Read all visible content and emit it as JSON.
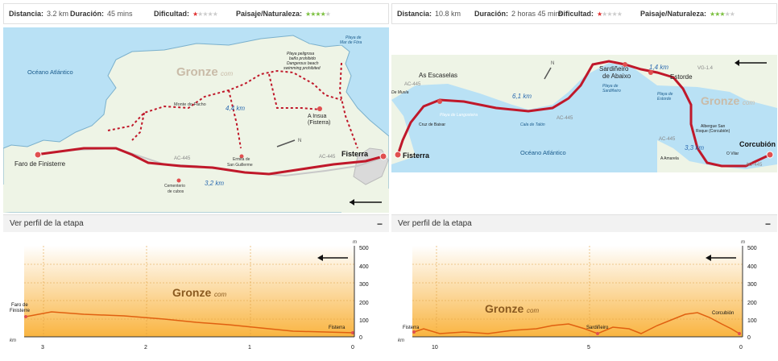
{
  "left": {
    "stats": {
      "distance_label": "Distancia:",
      "distance_value": "3.2 km",
      "duration_label": "Duración:",
      "duration_value": "45 mins",
      "difficulty_label": "Dificultad:",
      "difficulty_stars": "★",
      "difficulty_empty": "★★★★",
      "landscape_label": "Paisaje/Naturaleza:",
      "landscape_stars": "★★★★",
      "landscape_empty": "★"
    },
    "map": {
      "ocean": "Océano Atlántico",
      "brand": "Gronze",
      "brand_suffix": "com",
      "places": {
        "faro": "Faro de Finisterre",
        "monte": "Monte do Facho",
        "ermita1": "Ermita de",
        "ermita2": "San Guillerme",
        "cementerio1": "Cementerio",
        "cementerio2": "de cubos",
        "insua1": "A Insua",
        "insua2": "(Fisterra)",
        "fisterra": "Fisterra",
        "playa1": "Playa de",
        "playa2": "Mar de Fóra",
        "warn1": "Playa peligrosa",
        "warn2": "baño prohibido",
        "warn3": "Dangerous beach",
        "warn4": "swimming prohibited"
      },
      "roads": {
        "ac445a": "AC-445",
        "ac445b": "AC-445"
      },
      "distances": {
        "d1": "3,2 km",
        "d2": "4,4 km"
      },
      "compass_n": "N"
    },
    "profile": {
      "header": "Ver perfil de la etapa",
      "toggle": "−",
      "brand": "Gronze",
      "brand_suffix": "com",
      "start_label1": "Faro de",
      "start_label2": "Finisterre",
      "end_label": "Fisterra",
      "y_unit": "m",
      "x_unit": "km",
      "y_ticks": [
        "500",
        "400",
        "300",
        "200",
        "100",
        "0"
      ],
      "x_ticks": [
        "3",
        "2",
        "1",
        "0"
      ]
    }
  },
  "right": {
    "stats": {
      "distance_label": "Distancia:",
      "distance_value": "10.8 km",
      "duration_label": "Duración:",
      "duration_value": "2 horas 45 mins",
      "difficulty_label": "Dificultad:",
      "difficulty_stars": "★",
      "difficulty_empty": "★★★★",
      "landscape_label": "Paisaje/Naturaleza:",
      "landscape_stars": "★★★",
      "landscape_empty": "★★"
    },
    "map": {
      "ocean": "Océano Atlántico",
      "brand": "Gronze",
      "brand_suffix": "com",
      "places": {
        "escaselas": "As Escaselas",
        "sardineiro1": "Sardiñeiro",
        "sardineiro2": "de Abaixo",
        "estorde": "Estorde",
        "fisterra": "Fisterra",
        "corcubion": "Corcubión",
        "moxia1": "De Muxía",
        "cruz": "Cruz de Baixar",
        "langosteira": "Playa de Langosteira",
        "talon": "Cala de Talón",
        "playasard1": "Playa de",
        "playasard2": "Sardiñeiro",
        "playaest1": "Playa de",
        "playaest2": "Estorde",
        "albergue1": "Albergue San",
        "albergue2": "Roque (Corcubión)",
        "vilar": "O Vilar",
        "amarela": "A Amarela"
      },
      "roads": {
        "ac445a": "AC-445",
        "ac445b": "AC-445",
        "ac445c": "AC-445",
        "ac445d": "AC-445",
        "vg": "VG-1.4"
      },
      "distances": {
        "d1": "6,1 km",
        "d2": "1,4 km",
        "d3": "3,3 km"
      },
      "compass_n": "N"
    },
    "profile": {
      "header": "Ver perfil de la etapa",
      "toggle": "−",
      "brand": "Gronze",
      "brand_suffix": "com",
      "start_label": "Fisterra",
      "mid_label": "Sardiñeiro",
      "end_label": "Corcubión",
      "y_unit": "m",
      "x_unit": "km",
      "y_ticks": [
        "500",
        "400",
        "300",
        "200",
        "100",
        "0"
      ],
      "x_ticks": [
        "10",
        "5",
        "0"
      ]
    }
  }
}
